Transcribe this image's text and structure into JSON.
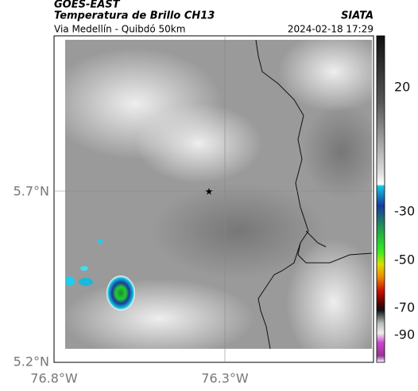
{
  "header": {
    "title": "GOES-EAST",
    "subtitle": "Temperatura de Brillo CH13",
    "region": "Via Medellín - Quibdó 50km",
    "source": "SIATA",
    "timestamp": "2024-02-18 17:29"
  },
  "axes": {
    "lat_labels": [
      "5.7°N",
      "5.2°N"
    ],
    "lon_labels": [
      "76.8°W",
      "76.3°W"
    ]
  },
  "colorbar": {
    "ticks": [
      20,
      -30,
      -50,
      -70,
      -90
    ]
  }
}
